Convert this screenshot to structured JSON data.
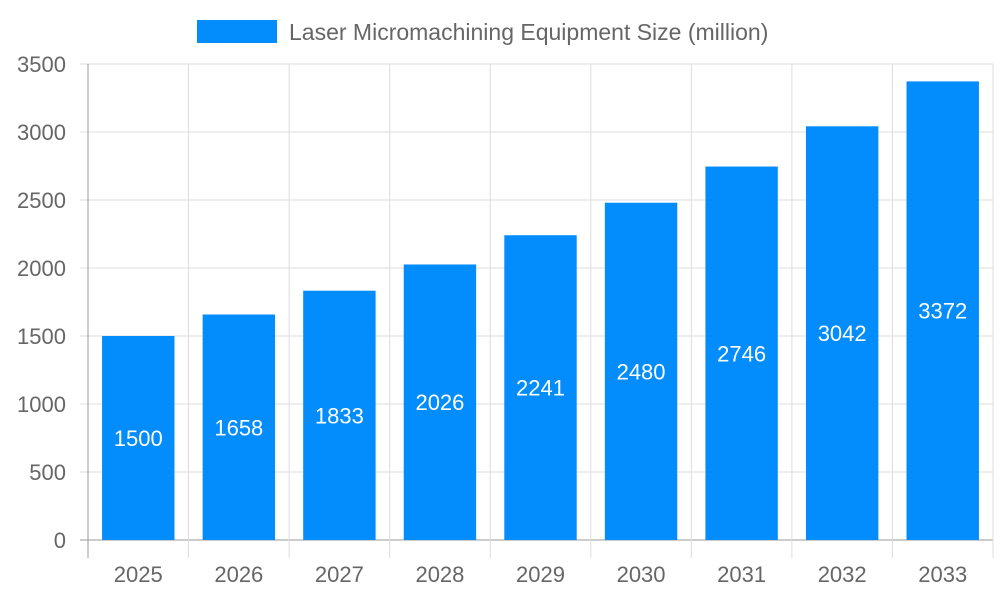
{
  "chart_data": {
    "type": "bar",
    "title": "",
    "xlabel": "",
    "ylabel": "",
    "categories": [
      "2025",
      "2026",
      "2027",
      "2028",
      "2029",
      "2030",
      "2031",
      "2032",
      "2033"
    ],
    "series": [
      {
        "name": "Laser Micromachining Equipment Size (million)",
        "values": [
          1500,
          1658,
          1833,
          2026,
          2241,
          2480,
          2746,
          3042,
          3372
        ],
        "color": "#038cfc"
      }
    ],
    "ylim": [
      0,
      3500
    ],
    "yticks": [
      0,
      500,
      1000,
      1500,
      2000,
      2500,
      3000,
      3500
    ],
    "grid": true,
    "legend": "top-center",
    "data_labels": true
  }
}
